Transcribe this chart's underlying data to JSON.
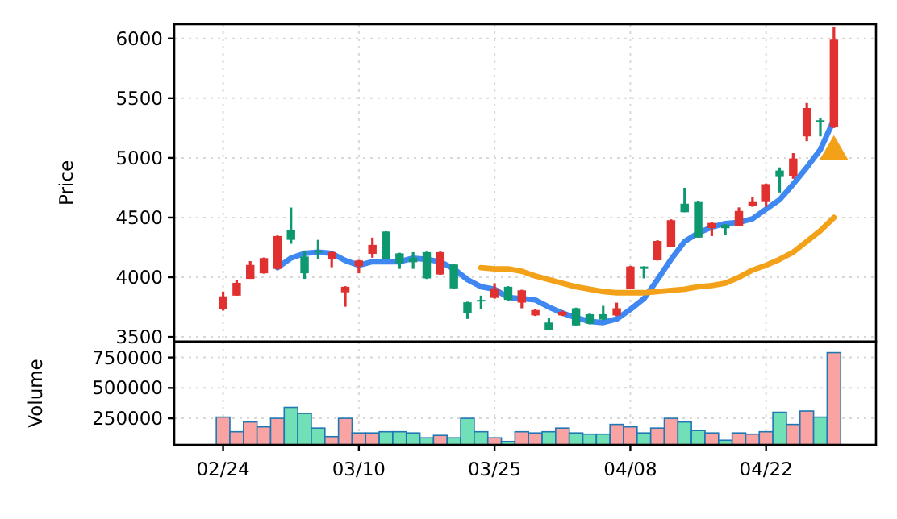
{
  "chart_data": [
    {
      "type": "candlestick",
      "ylabel": "Price",
      "tick_labels": "y",
      "grid": true,
      "categories": [
        null,
        null,
        null,
        null,
        null,
        null,
        null,
        null,
        null,
        null,
        null,
        null,
        null,
        null,
        null,
        null,
        null,
        null,
        null,
        null,
        null,
        null,
        null,
        null,
        null,
        null,
        null,
        null,
        null,
        null,
        null,
        null,
        null,
        null,
        null,
        null,
        null,
        null,
        null,
        null,
        null,
        null,
        null,
        null,
        null,
        null
      ],
      "ylim": [
        3460,
        6120
      ],
      "yticks": [
        3500,
        4000,
        4500,
        5000,
        5500,
        6000
      ],
      "ohlc": [
        [
          3730,
          3880,
          3720,
          3840
        ],
        [
          3846,
          3975,
          3846,
          3953
        ],
        [
          3986,
          4135,
          3986,
          4103
        ],
        [
          4033,
          4165,
          4030,
          4160
        ],
        [
          4070,
          4350,
          4065,
          4345
        ],
        [
          4397,
          4584,
          4280,
          4313
        ],
        [
          4173,
          4224,
          3986,
          4033
        ],
        [
          4220,
          4313,
          4154,
          4210
        ],
        [
          4154,
          4215,
          4084,
          4210
        ],
        [
          3874,
          3925,
          3753,
          3920
        ],
        [
          4093,
          4145,
          4033,
          4140
        ],
        [
          4196,
          4332,
          4163,
          4271
        ],
        [
          4383,
          4385,
          4150,
          4154
        ],
        [
          4200,
          4205,
          4070,
          4117
        ],
        [
          4163,
          4210,
          4070,
          4126
        ],
        [
          4210,
          4215,
          3985,
          3990
        ],
        [
          4023,
          4215,
          4020,
          4210
        ],
        [
          4107,
          4110,
          3905,
          3907
        ],
        [
          3790,
          3795,
          3650,
          3697
        ],
        [
          3810,
          3846,
          3734,
          3800
        ],
        [
          3827,
          3950,
          3820,
          3907
        ],
        [
          3920,
          3925,
          3805,
          3810
        ],
        [
          3787,
          3895,
          3740,
          3890
        ],
        [
          3680,
          3730,
          3675,
          3725
        ],
        [
          3620,
          3655,
          3555,
          3560
        ],
        [
          3680,
          3720,
          3675,
          3710
        ],
        [
          3740,
          3745,
          3595,
          3597
        ],
        [
          3690,
          3695,
          3605,
          3610
        ],
        [
          3690,
          3760,
          3640,
          3645
        ],
        [
          3680,
          3787,
          3675,
          3740
        ],
        [
          3905,
          4095,
          3900,
          4090
        ],
        [
          4090,
          4092,
          3990,
          4070
        ],
        [
          4142,
          4310,
          4140,
          4304
        ],
        [
          4254,
          4485,
          4250,
          4478
        ],
        [
          4616,
          4750,
          4545,
          4545
        ],
        [
          4630,
          4635,
          4332,
          4332
        ],
        [
          4412,
          4460,
          4345,
          4455
        ],
        [
          4440,
          4445,
          4355,
          4410
        ],
        [
          4428,
          4585,
          4425,
          4555
        ],
        [
          4600,
          4670,
          4590,
          4630
        ],
        [
          4630,
          4785,
          4590,
          4780
        ],
        [
          4894,
          4920,
          4710,
          4840
        ],
        [
          4850,
          5040,
          4825,
          4995
        ],
        [
          5180,
          5460,
          5140,
          5418
        ],
        [
          5315,
          5330,
          5180,
          5300
        ],
        [
          5257,
          6095,
          5250,
          5990
        ]
      ],
      "colors": [
        "#e03030",
        "#e03030",
        "#e03030",
        "#e03030",
        "#e03030",
        "#0e9870",
        "#0e9870",
        "#0e9870",
        "#e03030",
        "#e03030",
        "#e03030",
        "#e03030",
        "#0e9870",
        "#0e9870",
        "#0e9870",
        "#0e9870",
        "#e03030",
        "#0e9870",
        "#0e9870",
        "#0e9870",
        "#e03030",
        "#0e9870",
        "#e03030",
        "#e03030",
        "#0e9870",
        "#e03030",
        "#0e9870",
        "#0e9870",
        "#0e9870",
        "#e03030",
        "#e03030",
        "#0e9870",
        "#e03030",
        "#e03030",
        "#0e9870",
        "#0e9870",
        "#e03030",
        "#0e9870",
        "#e03030",
        "#e03030",
        "#e03030",
        "#0e9870",
        "#e03030",
        "#e03030",
        "#0e9870",
        "#e03030"
      ],
      "series": [
        {
          "type": "line",
          "color": "#3f88f2",
          "line_style": "solid",
          "values": [
            null,
            null,
            null,
            null,
            4080,
            4160,
            4200,
            4210,
            4200,
            4140,
            4100,
            4130,
            4130,
            4130,
            4160,
            4150,
            4130,
            4070,
            3980,
            3920,
            3900,
            3830,
            3820,
            3810,
            3750,
            3700,
            3660,
            3630,
            3620,
            3650,
            3730,
            3820,
            3980,
            4150,
            4300,
            4370,
            4420,
            4450,
            4460,
            4490,
            4570,
            4650,
            4780,
            4920,
            5070,
            5320
          ]
        },
        {
          "type": "line",
          "color": "#f4a11a",
          "line_style": "solid",
          "values": [
            null,
            null,
            null,
            null,
            null,
            null,
            null,
            null,
            null,
            null,
            null,
            null,
            null,
            null,
            null,
            null,
            null,
            null,
            null,
            4080,
            4070,
            4070,
            4050,
            4010,
            3980,
            3950,
            3920,
            3900,
            3880,
            3870,
            3870,
            3870,
            3880,
            3890,
            3900,
            3920,
            3930,
            3950,
            4000,
            4060,
            4100,
            4150,
            4210,
            4300,
            4390,
            4500
          ]
        },
        {
          "type": "scatter",
          "color": "#f4a11a",
          "marker": "triangle",
          "values": [
            null,
            null,
            null,
            null,
            null,
            null,
            null,
            null,
            null,
            null,
            null,
            null,
            null,
            null,
            null,
            null,
            null,
            null,
            null,
            null,
            null,
            null,
            null,
            null,
            null,
            null,
            null,
            null,
            null,
            null,
            null,
            null,
            null,
            null,
            null,
            null,
            null,
            null,
            null,
            null,
            null,
            null,
            null,
            null,
            null,
            5050
          ]
        }
      ]
    },
    {
      "type": "bar",
      "ylabel": "Volume",
      "grid": true,
      "categories": [
        "02/24",
        null,
        null,
        null,
        null,
        null,
        null,
        null,
        null,
        null,
        "03/10",
        null,
        null,
        null,
        null,
        null,
        null,
        null,
        null,
        null,
        "03/25",
        null,
        null,
        null,
        null,
        null,
        null,
        null,
        null,
        null,
        "04/08",
        null,
        null,
        null,
        null,
        null,
        null,
        null,
        null,
        null,
        "04/22",
        null,
        null,
        null,
        null,
        null
      ],
      "ylim": [
        32000,
        880000
      ],
      "yticks": [
        250000,
        500000,
        750000
      ],
      "values": [
        260000,
        140000,
        220000,
        180000,
        250000,
        340000,
        290000,
        170000,
        100000,
        250000,
        130000,
        130000,
        140000,
        140000,
        130000,
        90000,
        110000,
        90000,
        250000,
        140000,
        90000,
        60000,
        140000,
        130000,
        140000,
        170000,
        130000,
        120000,
        120000,
        200000,
        180000,
        130000,
        170000,
        250000,
        220000,
        150000,
        130000,
        70000,
        130000,
        120000,
        140000,
        300000,
        200000,
        310000,
        260000,
        790000
      ],
      "colors": [
        "#f9a3a3",
        "#f9a3a3",
        "#f9a3a3",
        "#f9a3a3",
        "#f9a3a3",
        "#72e0b6",
        "#72e0b6",
        "#72e0b6",
        "#f9a3a3",
        "#f9a3a3",
        "#f9a3a3",
        "#f9a3a3",
        "#72e0b6",
        "#72e0b6",
        "#72e0b6",
        "#72e0b6",
        "#f9a3a3",
        "#72e0b6",
        "#72e0b6",
        "#72e0b6",
        "#f9a3a3",
        "#72e0b6",
        "#f9a3a3",
        "#f9a3a3",
        "#72e0b6",
        "#f9a3a3",
        "#72e0b6",
        "#72e0b6",
        "#72e0b6",
        "#f9a3a3",
        "#f9a3a3",
        "#72e0b6",
        "#f9a3a3",
        "#f9a3a3",
        "#72e0b6",
        "#72e0b6",
        "#f9a3a3",
        "#72e0b6",
        "#f9a3a3",
        "#f9a3a3",
        "#f9a3a3",
        "#72e0b6",
        "#f9a3a3",
        "#f9a3a3",
        "#72e0b6",
        "#f9a3a3"
      ]
    }
  ]
}
